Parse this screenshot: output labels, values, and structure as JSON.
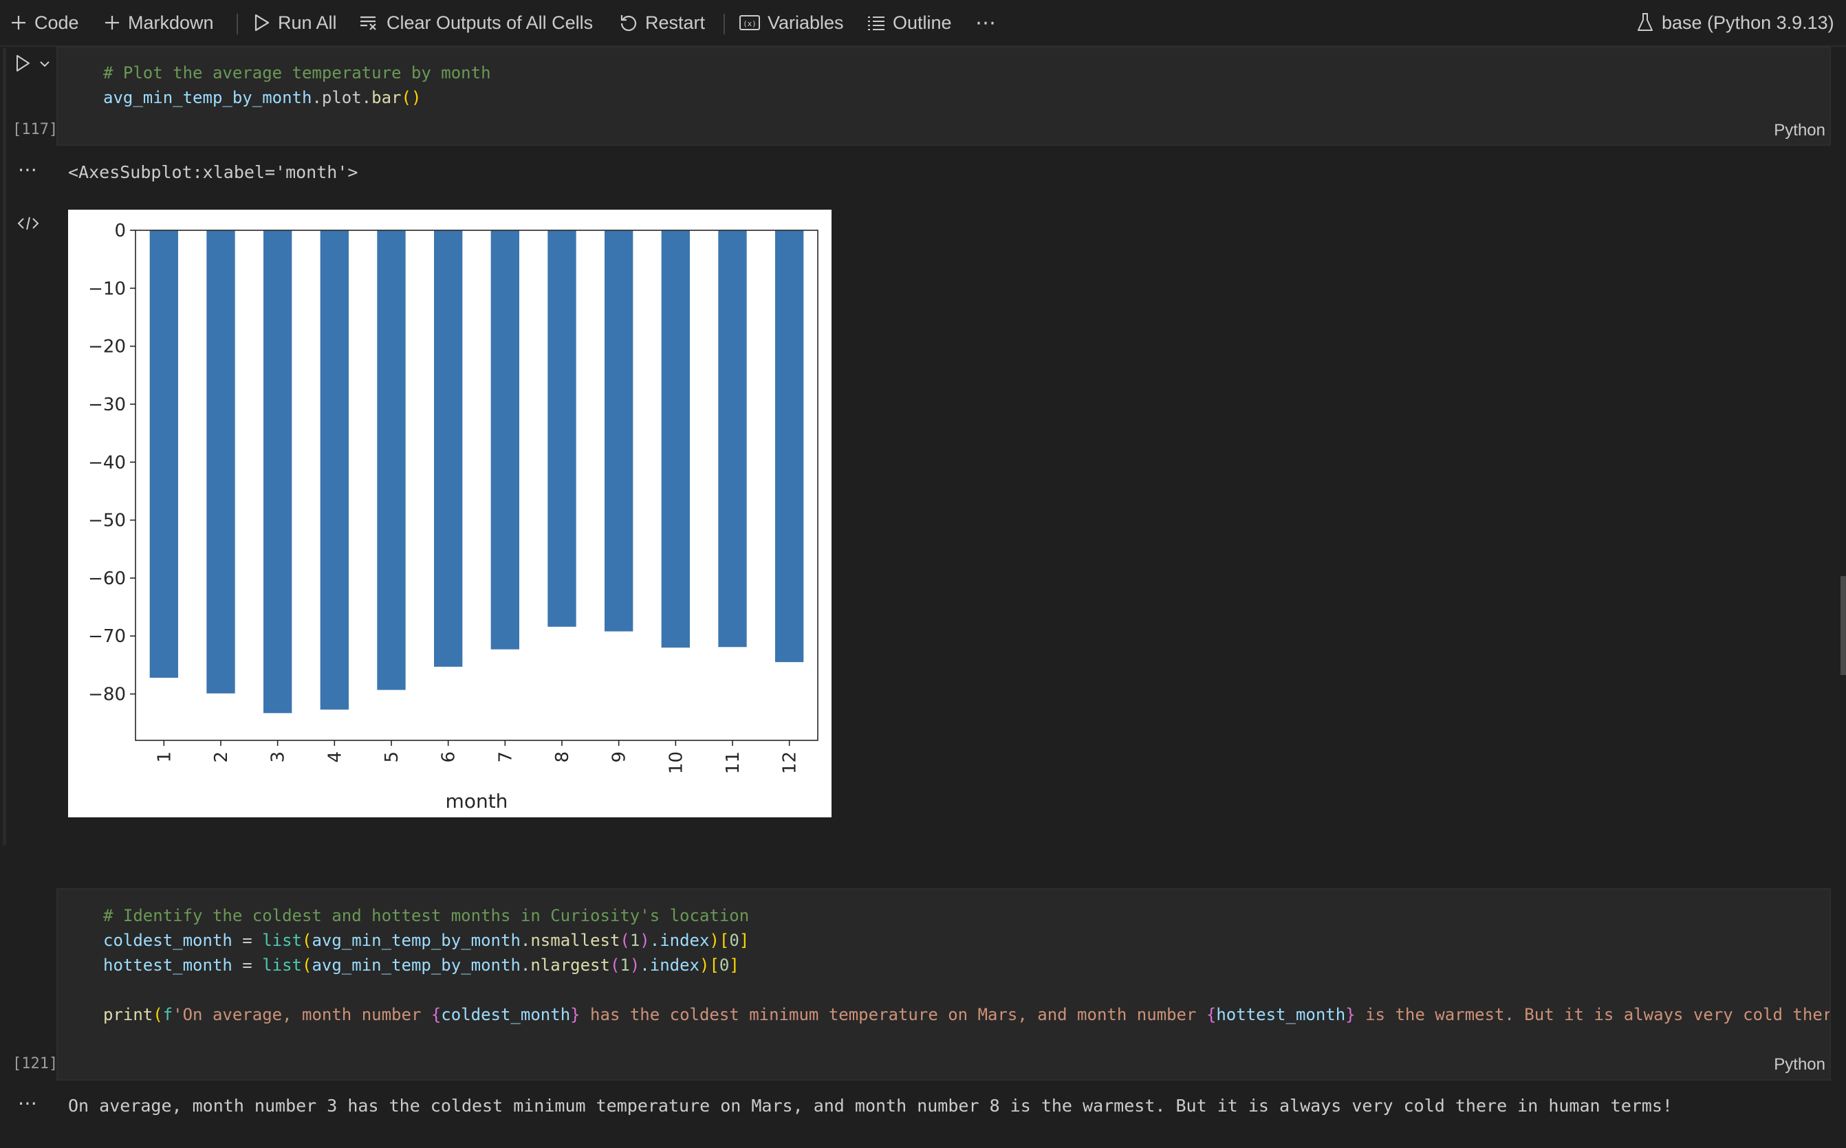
{
  "toolbar": {
    "code_label": "Code",
    "markdown_label": "Markdown",
    "run_all_label": "Run All",
    "clear_outputs_label": "Clear Outputs of All Cells",
    "restart_label": "Restart",
    "variables_label": "Variables",
    "outline_label": "Outline",
    "more_label": "⋯",
    "kernel_label": "base (Python 3.9.13)"
  },
  "cell1": {
    "code_line1": "# Plot the average temperature by month",
    "code_line2_var": "avg_min_temp_by_month",
    "code_line2_attr": ".plot.",
    "code_line2_fn": "bar",
    "code_line2_paren": "()",
    "execution_count": "[117]",
    "language": "Python",
    "output_ellipsis": "⋯",
    "output_repr": "<AxesSubplot:xlabel='month'>"
  },
  "chart_data": {
    "type": "bar",
    "categories": [
      "1",
      "2",
      "3",
      "4",
      "5",
      "6",
      "7",
      "8",
      "9",
      "10",
      "11",
      "12"
    ],
    "values": [
      -77.2,
      -79.9,
      -83.3,
      -82.7,
      -79.3,
      -75.3,
      -72.3,
      -68.4,
      -69.2,
      -72.0,
      -71.9,
      -74.5
    ],
    "xlabel": "month",
    "ylabel": "",
    "ylim": [
      -88,
      0
    ],
    "yticks": [
      0,
      -10,
      -20,
      -30,
      -40,
      -50,
      -60,
      -70,
      -80
    ],
    "ytick_labels": [
      "0",
      "−10",
      "−20",
      "−30",
      "−40",
      "−50",
      "−60",
      "−70",
      "−80"
    ],
    "bar_color": "#3b75af",
    "grid": false,
    "legend": "none"
  },
  "cell2": {
    "line1": "# Identify the coldest and hottest months in Curiosity's location",
    "line2": {
      "v": "coldest_month",
      "eq": " = ",
      "fn": "list",
      "p": "(",
      "obj": "avg_min_temp_by_month",
      "dot": ".",
      "m": "nsmallest",
      "a1": "(",
      "n": "1",
      "a2": ")",
      "idx": ".index",
      "pc": ")",
      "b": "[",
      "z": "0",
      "bc": "]"
    },
    "line3": {
      "v": "hottest_month",
      "eq": " = ",
      "fn": "list",
      "p": "(",
      "obj": "avg_min_temp_by_month",
      "dot": ".",
      "m": "nlargest",
      "a1": "(",
      "n": "1",
      "a2": ")",
      "idx": ".index",
      "pc": ")",
      "b": "[",
      "z": "0",
      "bc": "]"
    },
    "line5": {
      "fn": "print",
      "p": "(",
      "f": "f",
      "s1": "'On average, month number ",
      "b1": "{",
      "v1": "coldest_month",
      "b1c": "}",
      "s2": " has the coldest minimum temperature on Mars, and month number ",
      "b2": "{",
      "v2": "hottest_month",
      "b2c": "}",
      "s3": " is the warmest. But it is always very cold ther"
    },
    "execution_count": "[121]",
    "language": "Python",
    "output_ellipsis": "⋯",
    "output_text": "On average, month number 3 has the coldest minimum temperature on Mars, and month number 8 is the warmest. But it is always very cold there in human terms!"
  },
  "colors": {
    "background": "#1f1f1f",
    "cell_background": "#282828",
    "comment": "#6a9955",
    "variable": "#9cdcfe",
    "function": "#dcdcaa",
    "builtin": "#4ec9b0",
    "string": "#ce9178",
    "number": "#b5cea8"
  },
  "icons": {
    "code": "plus-icon",
    "markdown": "plus-icon",
    "run_all": "play-icon",
    "clear": "clear-all-icon",
    "restart": "restart-icon",
    "variables": "variables-icon",
    "outline": "list-icon",
    "kernel": "flask-icon",
    "run_cell": "play-icon",
    "run_menu": "chevron-down-icon",
    "output_mime": "code-brackets-icon"
  }
}
